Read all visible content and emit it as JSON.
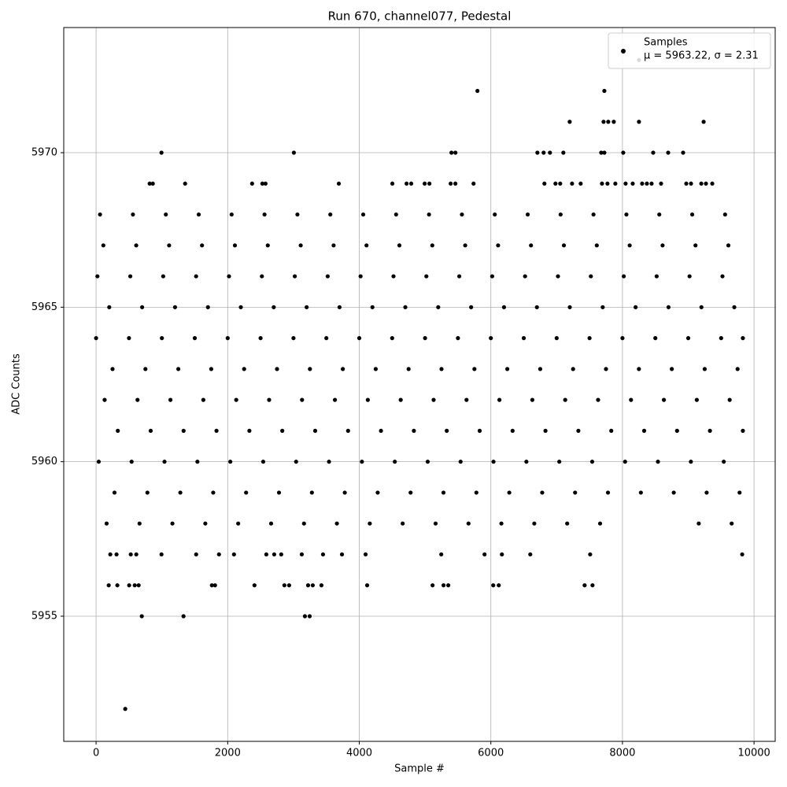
{
  "chart_data": {
    "type": "scatter",
    "title": "Run 670, channel077, Pedestal",
    "xlabel": "Sample #",
    "ylabel": "ADC Counts",
    "xlim": [
      -491.5,
      10321.5
    ],
    "ylim": [
      5950.95,
      5974.05
    ],
    "xticks": [
      0,
      2000,
      4000,
      6000,
      8000,
      10000
    ],
    "yticks": [
      5955,
      5960,
      5965,
      5970
    ],
    "grid": true,
    "legend": "upper right",
    "legend_stats": "μ = 5963.22, σ = 2.31",
    "series": [
      {
        "name": "Samples",
        "color": "#000000",
        "x": [
          60,
          560,
          1060,
          1560,
          2060,
          2560,
          3060,
          3560,
          4060,
          4560,
          5060,
          5560,
          6060,
          6560,
          7060,
          7560,
          8060,
          8560,
          9060,
          9560,
          110,
          610,
          1110,
          1610,
          2110,
          2610,
          3110,
          3610,
          4110,
          4610,
          5110,
          5610,
          6110,
          6610,
          7110,
          7610,
          8110,
          8610,
          9110,
          9610,
          20,
          520,
          1020,
          1520,
          2020,
          2520,
          3020,
          3520,
          4020,
          4520,
          5020,
          5520,
          6020,
          6520,
          7020,
          7520,
          8020,
          8520,
          9020,
          9520,
          200,
          700,
          1200,
          1700,
          2200,
          2700,
          3200,
          3700,
          4200,
          4700,
          5200,
          5700,
          6200,
          6700,
          7200,
          7700,
          8200,
          8700,
          9200,
          9700,
          0,
          500,
          1000,
          1500,
          2000,
          2500,
          3000,
          3500,
          4000,
          4500,
          5000,
          5500,
          6000,
          6500,
          7000,
          7500,
          8000,
          8500,
          9000,
          9500,
          9830,
          250,
          750,
          1250,
          1750,
          2250,
          2750,
          3250,
          3750,
          4250,
          4750,
          5250,
          5750,
          6250,
          6750,
          7250,
          7750,
          8250,
          8750,
          9250,
          9750,
          130,
          630,
          1130,
          1630,
          2130,
          2630,
          3130,
          3630,
          4130,
          4630,
          5130,
          5630,
          6130,
          6630,
          7130,
          7630,
          8130,
          8630,
          9130,
          9630,
          330,
          830,
          1330,
          1830,
          2330,
          2830,
          3330,
          3830,
          4330,
          4830,
          5330,
          5830,
          6330,
          6830,
          7330,
          7830,
          8330,
          8830,
          9330,
          9830,
          40,
          540,
          1040,
          1540,
          2040,
          2540,
          3040,
          3540,
          4040,
          4540,
          5040,
          5540,
          6040,
          6540,
          7040,
          7540,
          8040,
          8540,
          9040,
          9540,
          280,
          780,
          1280,
          1780,
          2280,
          2780,
          3280,
          3780,
          4280,
          4780,
          5280,
          5780,
          6280,
          6780,
          7280,
          7780,
          8280,
          8780,
          9280,
          9780,
          160,
          660,
          1160,
          1660,
          2160,
          2660,
          3160,
          3660,
          4160,
          4660,
          5160,
          5660,
          6160,
          6660,
          7160,
          7660,
          9160,
          9660,
          443,
          695,
          1329,
          3174,
          3246,
          192,
          323,
          503,
          587,
          647,
          1760,
          1808,
          2407,
          2862,
          2934,
          3222,
          3293,
          3425,
          4120,
          5114,
          5281,
          5353,
          6036,
          6120,
          7425,
          7545,
          216,
          311,
          527,
          611,
          994,
          1521,
          1868,
          2096,
          2587,
          2707,
          2814,
          3126,
          3449,
          3737,
          4096,
          5246,
          5904,
          6168,
          6599,
          7509,
          9820,
          814,
          862,
          1353,
          2371,
          2527,
          2575,
          3689,
          4503,
          4719,
          4790,
          4994,
          5066,
          5389,
          5461,
          5737,
          6814,
          6982,
          7054,
          7234,
          7365,
          7689,
          7772,
          7892,
          8048,
          8156,
          8299,
          8371,
          8443,
          8587,
          8970,
          9042,
          9198,
          9269,
          9365,
          994,
          3006,
          5401,
          5461,
          6707,
          6802,
          6898,
          7102,
          7677,
          7725,
          8012,
          8467,
          8695,
          8922,
          7198,
          7713,
          7784,
          7868,
          8251,
          9234,
          5796,
          7725,
          8251
        ],
        "values": [
          5968,
          5968,
          5968,
          5968,
          5968,
          5968,
          5968,
          5968,
          5968,
          5968,
          5968,
          5968,
          5968,
          5968,
          5968,
          5968,
          5968,
          5968,
          5968,
          5968,
          5967,
          5967,
          5967,
          5967,
          5967,
          5967,
          5967,
          5967,
          5967,
          5967,
          5967,
          5967,
          5967,
          5967,
          5967,
          5967,
          5967,
          5967,
          5967,
          5967,
          5966,
          5966,
          5966,
          5966,
          5966,
          5966,
          5966,
          5966,
          5966,
          5966,
          5966,
          5966,
          5966,
          5966,
          5966,
          5966,
          5966,
          5966,
          5966,
          5966,
          5965,
          5965,
          5965,
          5965,
          5965,
          5965,
          5965,
          5965,
          5965,
          5965,
          5965,
          5965,
          5965,
          5965,
          5965,
          5965,
          5965,
          5965,
          5965,
          5965,
          5964,
          5964,
          5964,
          5964,
          5964,
          5964,
          5964,
          5964,
          5964,
          5964,
          5964,
          5964,
          5964,
          5964,
          5964,
          5964,
          5964,
          5964,
          5964,
          5964,
          5964,
          5963,
          5963,
          5963,
          5963,
          5963,
          5963,
          5963,
          5963,
          5963,
          5963,
          5963,
          5963,
          5963,
          5963,
          5963,
          5963,
          5963,
          5963,
          5963,
          5963,
          5962,
          5962,
          5962,
          5962,
          5962,
          5962,
          5962,
          5962,
          5962,
          5962,
          5962,
          5962,
          5962,
          5962,
          5962,
          5962,
          5962,
          5962,
          5962,
          5962,
          5961,
          5961,
          5961,
          5961,
          5961,
          5961,
          5961,
          5961,
          5961,
          5961,
          5961,
          5961,
          5961,
          5961,
          5961,
          5961,
          5961,
          5961,
          5961,
          5961,
          5960,
          5960,
          5960,
          5960,
          5960,
          5960,
          5960,
          5960,
          5960,
          5960,
          5960,
          5960,
          5960,
          5960,
          5960,
          5960,
          5960,
          5960,
          5960,
          5960,
          5959,
          5959,
          5959,
          5959,
          5959,
          5959,
          5959,
          5959,
          5959,
          5959,
          5959,
          5959,
          5959,
          5959,
          5959,
          5959,
          5959,
          5959,
          5959,
          5959,
          5958,
          5958,
          5958,
          5958,
          5958,
          5958,
          5958,
          5958,
          5958,
          5958,
          5958,
          5958,
          5958,
          5958,
          5958,
          5958,
          5958,
          5958,
          5952,
          5955,
          5955,
          5955,
          5955,
          5956,
          5956,
          5956,
          5956,
          5956,
          5956,
          5956,
          5956,
          5956,
          5956,
          5956,
          5956,
          5956,
          5956,
          5956,
          5956,
          5956,
          5956,
          5956,
          5956,
          5956,
          5957,
          5957,
          5957,
          5957,
          5957,
          5957,
          5957,
          5957,
          5957,
          5957,
          5957,
          5957,
          5957,
          5957,
          5957,
          5957,
          5957,
          5957,
          5957,
          5957,
          5957,
          5969,
          5969,
          5969,
          5969,
          5969,
          5969,
          5969,
          5969,
          5969,
          5969,
          5969,
          5969,
          5969,
          5969,
          5969,
          5969,
          5969,
          5969,
          5969,
          5969,
          5969,
          5969,
          5969,
          5969,
          5969,
          5969,
          5969,
          5969,
          5969,
          5969,
          5969,
          5969,
          5969,
          5969,
          5970,
          5970,
          5970,
          5970,
          5970,
          5970,
          5970,
          5970,
          5970,
          5970,
          5970,
          5970,
          5970,
          5970,
          5971,
          5971,
          5971,
          5971,
          5971,
          5971,
          5972,
          5972,
          5973
        ]
      }
    ]
  }
}
